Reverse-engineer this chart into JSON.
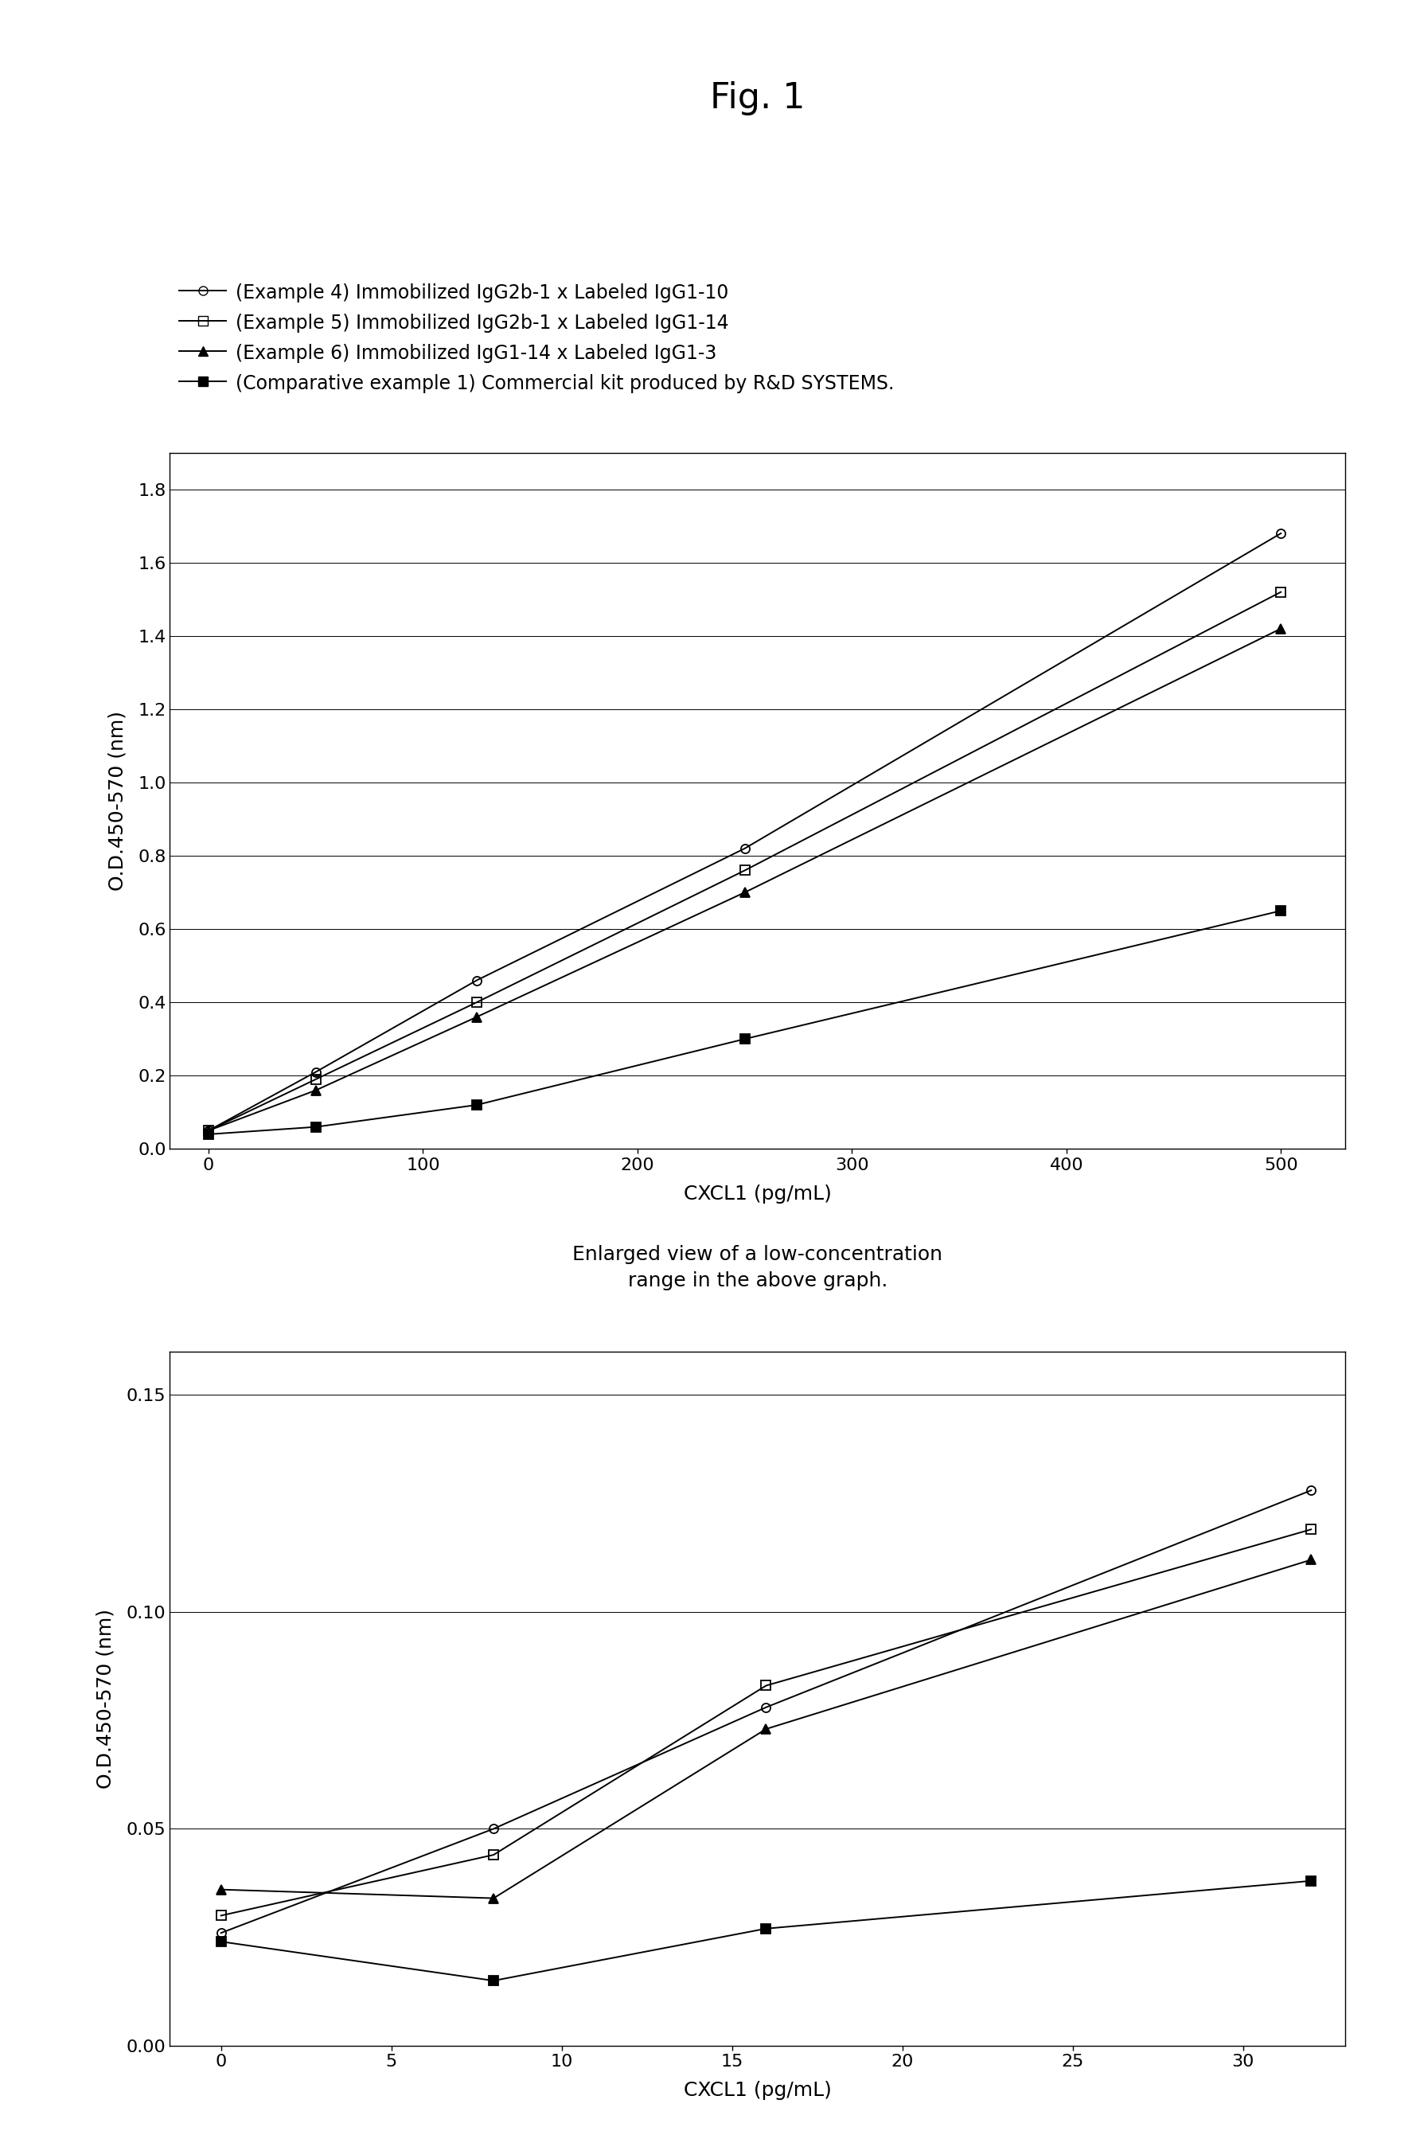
{
  "title": "Fig. 1",
  "legend_entries": [
    "(Example 4) Immobilized IgG2b-1 x Labeled IgG1-10",
    "(Example 5) Immobilized IgG2b-1 x Labeled IgG1-14",
    "(Example 6) Immobilized IgG1-14 x Labeled IgG1-3",
    "(Comparative example 1) Commercial kit produced by R&D SYSTEMS."
  ],
  "top_chart": {
    "xlabel": "CXCL1 (pg/mL)",
    "ylabel": "O.D.450-570 (nm)",
    "xlim": [
      -18,
      530
    ],
    "ylim": [
      0.0,
      1.9
    ],
    "xticks": [
      0,
      100,
      200,
      300,
      400,
      500
    ],
    "yticks": [
      0.0,
      0.2,
      0.4,
      0.6,
      0.8,
      1.0,
      1.2,
      1.4,
      1.6,
      1.8
    ],
    "series": [
      {
        "x": [
          0,
          50,
          125,
          250,
          500
        ],
        "y": [
          0.05,
          0.21,
          0.46,
          0.82,
          1.68
        ]
      },
      {
        "x": [
          0,
          50,
          125,
          250,
          500
        ],
        "y": [
          0.05,
          0.19,
          0.4,
          0.76,
          1.52
        ]
      },
      {
        "x": [
          0,
          50,
          125,
          250,
          500
        ],
        "y": [
          0.05,
          0.16,
          0.36,
          0.7,
          1.42
        ]
      },
      {
        "x": [
          0,
          50,
          125,
          250,
          500
        ],
        "y": [
          0.04,
          0.06,
          0.12,
          0.3,
          0.65
        ]
      }
    ]
  },
  "bottom_chart": {
    "xlabel": "CXCL1 (pg/mL)",
    "ylabel": "O.D.450-570 (nm)",
    "subtitle_line1": "Enlarged view of a low-concentration",
    "subtitle_line2": "range in the above graph.",
    "xlim": [
      -1.5,
      33
    ],
    "ylim": [
      0.0,
      0.16
    ],
    "xticks": [
      0,
      5,
      10,
      15,
      20,
      25,
      30
    ],
    "yticks": [
      0.0,
      0.05,
      0.1,
      0.15
    ],
    "series": [
      {
        "x": [
          0,
          8,
          16,
          32
        ],
        "y": [
          0.026,
          0.05,
          0.078,
          0.128
        ]
      },
      {
        "x": [
          0,
          8,
          16,
          32
        ],
        "y": [
          0.03,
          0.044,
          0.083,
          0.119
        ]
      },
      {
        "x": [
          0,
          8,
          16,
          32
        ],
        "y": [
          0.036,
          0.034,
          0.073,
          0.112
        ]
      },
      {
        "x": [
          0,
          8,
          16,
          32
        ],
        "y": [
          0.024,
          0.015,
          0.027,
          0.038
        ]
      }
    ]
  },
  "markers": [
    "o",
    "s",
    "^",
    "s"
  ],
  "fillstyles": [
    "none",
    "none",
    "full",
    "full"
  ],
  "background_color": "#ffffff",
  "font_color": "#000000",
  "linewidth": 1.4,
  "markersize": 8,
  "font_size_title": 32,
  "font_size_legend": 17,
  "font_size_axis_label": 18,
  "font_size_tick": 16,
  "font_size_subtitle": 18
}
